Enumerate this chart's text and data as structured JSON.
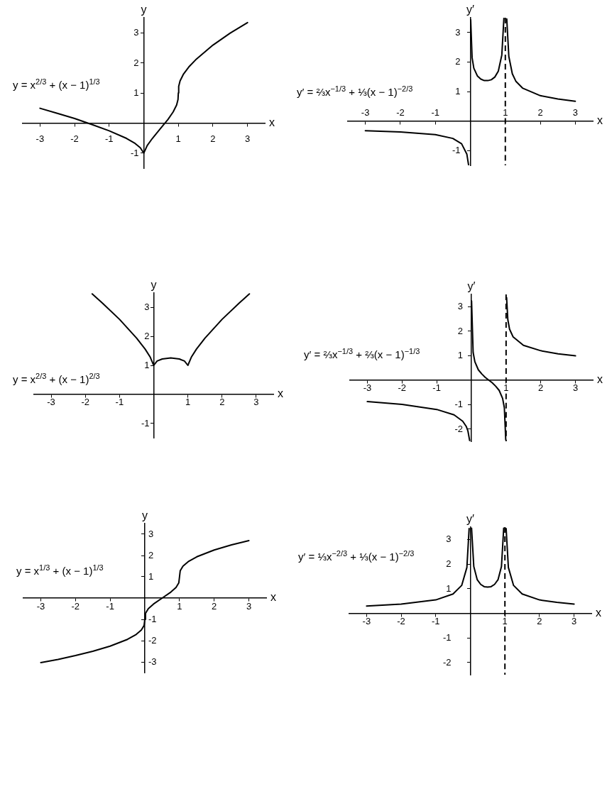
{
  "chart_data": [
    {
      "type": "line",
      "xlabel": "x",
      "ylabel": "y",
      "annotations": [
        "y = x$^{2/3}$ + (x − 1)$^{1/3}$"
      ],
      "x": [
        -3,
        -2.5,
        -2,
        -1.5,
        -1,
        -0.5,
        -0.25,
        -0.1,
        0,
        0.1,
        0.25,
        0.5,
        0.7,
        0.85,
        0.95,
        0.99,
        1,
        1.01,
        1.05,
        1.15,
        1.3,
        1.5,
        2,
        2.5,
        3
      ],
      "values": [
        0.49,
        0.32,
        0.15,
        -0.05,
        -0.26,
        -0.51,
        -0.68,
        -0.82,
        -1,
        -0.75,
        -0.51,
        -0.16,
        0.12,
        0.37,
        0.6,
        0.78,
        1,
        1.22,
        1.4,
        1.63,
        1.86,
        2.1,
        2.59,
        2.99,
        3.34
      ],
      "color": "#000000",
      "xlim": [
        -3.5,
        3.5
      ],
      "ylim": [
        -1.5,
        3.5
      ],
      "xticks": [
        -3,
        -2,
        -1,
        1,
        2,
        3
      ],
      "yticks": [
        -1,
        1,
        2,
        3
      ],
      "marker": "none"
    },
    {
      "type": "line",
      "xlabel": "x",
      "ylabel": "y′",
      "annotations": [
        "y′ = ⅔x$^{−1/3}$ + ⅓(x − 1)$^{−2/3}$"
      ],
      "x": [
        -3,
        -2,
        -1,
        -0.5,
        -0.25,
        -0.1,
        -0.05,
        0,
        0.01,
        0.05,
        0.1,
        0.2,
        0.3,
        0.4,
        0.5,
        0.6,
        0.7,
        0.8,
        0.9,
        0.959,
        1,
        1.041,
        1.1,
        1.2,
        1.3,
        1.5,
        2,
        2.5,
        3
      ],
      "values": [
        -0.33,
        -0.37,
        -0.46,
        -0.59,
        -0.77,
        -1.12,
        -1.49,
        null,
        3.43,
        2.15,
        1.79,
        1.53,
        1.42,
        1.37,
        1.37,
        1.4,
        1.49,
        1.69,
        2.24,
        3.48,
        null,
        3.46,
        2.19,
        1.6,
        1.35,
        1.11,
        0.86,
        0.75,
        0.67
      ],
      "color": "#000000",
      "xlim": [
        -3.5,
        3.5
      ],
      "ylim": [
        -1.5,
        3.5
      ],
      "xticks": [
        -3,
        -2,
        -1,
        1,
        2,
        3
      ],
      "yticks": [
        -1,
        1,
        2,
        3
      ],
      "marker": "none",
      "ref_lines": [
        {
          "axis": "x",
          "value": 1,
          "color": "#000000",
          "line_style": "dashed"
        }
      ]
    },
    {
      "type": "line",
      "xlabel": "x",
      "ylabel": "y",
      "annotations": [
        "y = x$^{2/3}$ + (x − 1)$^{2/3}$"
      ],
      "x": [
        -1.8,
        -1.5,
        -1,
        -0.5,
        -0.25,
        -0.1,
        0,
        0.1,
        0.25,
        0.5,
        0.75,
        0.9,
        1,
        1.1,
        1.25,
        1.5,
        2,
        2.5,
        2.8
      ],
      "values": [
        3.47,
        3.15,
        2.59,
        1.94,
        1.56,
        1.28,
        1,
        1.15,
        1.22,
        1.26,
        1.22,
        1.15,
        1,
        1.28,
        1.56,
        1.94,
        2.59,
        3.15,
        3.47
      ],
      "color": "#000000",
      "xlim": [
        -3.5,
        3.5
      ],
      "ylim": [
        -1.5,
        3.5
      ],
      "xticks": [
        -3,
        -2,
        -1,
        1,
        2,
        3
      ],
      "yticks": [
        -1,
        1,
        2,
        3
      ],
      "marker": "none"
    },
    {
      "type": "line",
      "xlabel": "x",
      "ylabel": "y′",
      "annotations": [
        "y′ = ⅔x$^{−1/3}$ + ⅔(x − 1)$^{−1/3}$"
      ],
      "x": [
        -3,
        -2,
        -1,
        -0.5,
        -0.25,
        -0.15,
        -0.1,
        -0.05,
        0,
        0.005,
        0.05,
        0.1,
        0.2,
        0.3,
        0.4,
        0.5,
        0.6,
        0.7,
        0.8,
        0.9,
        0.95,
        0.99,
        1,
        1.015,
        1.05,
        1.1,
        1.2,
        1.5,
        2,
        2.5,
        3
      ],
      "values": [
        -0.88,
        -0.99,
        -1.2,
        -1.42,
        -1.68,
        -1.89,
        -2.08,
        -2.47,
        null,
        3.23,
        1.13,
        0.75,
        0.42,
        0.25,
        0.11,
        0,
        -0.11,
        -0.25,
        -0.42,
        -0.75,
        -1.13,
        -2.43,
        null,
        3.37,
        2.47,
        2.08,
        1.77,
        1.42,
        1.2,
        1.07,
        0.99
      ],
      "color": "#000000",
      "xlim": [
        -3.5,
        3.5
      ],
      "ylim": [
        -2.5,
        3.5
      ],
      "xticks": [
        -3,
        -2,
        -1,
        1,
        2,
        3
      ],
      "yticks": [
        -2,
        -1,
        1,
        2,
        3
      ],
      "marker": "none",
      "ref_lines": [
        {
          "axis": "x",
          "value": 1,
          "color": "#000000",
          "line_style": "dashed"
        }
      ]
    },
    {
      "type": "line",
      "xlabel": "x",
      "ylabel": "y",
      "annotations": [
        "y = x$^{1/3}$ + (x − 1)$^{1/3}$"
      ],
      "x": [
        -3,
        -2.5,
        -2,
        -1.5,
        -1,
        -0.5,
        -0.25,
        -0.1,
        -0.02,
        0,
        0.02,
        0.1,
        0.25,
        0.5,
        0.75,
        0.9,
        0.98,
        1,
        1.02,
        1.1,
        1.25,
        1.5,
        2,
        2.5,
        3
      ],
      "values": [
        -3.03,
        -2.88,
        -2.7,
        -2.5,
        -2.26,
        -1.94,
        -1.71,
        -1.5,
        -1.28,
        -1,
        -0.72,
        -0.5,
        -0.28,
        0,
        0.28,
        0.5,
        0.72,
        1,
        1.28,
        1.5,
        1.71,
        1.94,
        2.26,
        2.5,
        2.7
      ],
      "color": "#000000",
      "xlim": [
        -3.5,
        3.5
      ],
      "ylim": [
        -3.5,
        3.5
      ],
      "xticks": [
        -3,
        -2,
        -1,
        1,
        2,
        3
      ],
      "yticks": [
        -3,
        -2,
        -1,
        1,
        2,
        3
      ],
      "marker": "none"
    },
    {
      "type": "line",
      "xlabel": "x",
      "ylabel": "y′",
      "annotations": [
        "y′ = ⅓x$^{−2/3}$ + ⅓(x − 1)$^{−2/3}$"
      ],
      "x": [
        -3,
        -2,
        -1,
        -0.5,
        -0.25,
        -0.1,
        -0.035,
        0,
        0.035,
        0.1,
        0.2,
        0.3,
        0.4,
        0.5,
        0.6,
        0.7,
        0.8,
        0.9,
        0.965,
        1,
        1.035,
        1.1,
        1.25,
        1.5,
        2,
        2.5,
        3
      ],
      "values": [
        0.29,
        0.37,
        0.54,
        0.78,
        1.13,
        1.86,
        3.44,
        null,
        3.46,
        1.9,
        1.36,
        1.17,
        1.08,
        1.06,
        1.08,
        1.17,
        1.36,
        1.9,
        3.46,
        null,
        3.44,
        1.86,
        1.13,
        0.78,
        0.54,
        0.44,
        0.37
      ],
      "color": "#000000",
      "xlim": [
        -3.5,
        3.5
      ],
      "ylim": [
        -2.5,
        3.5
      ],
      "xticks": [
        -3,
        -2,
        -1,
        1,
        2,
        3
      ],
      "yticks": [
        -2,
        -1,
        1,
        2,
        3
      ],
      "marker": "none",
      "ref_lines": [
        {
          "axis": "x",
          "value": 1,
          "color": "#000000",
          "line_style": "dashed"
        }
      ]
    }
  ]
}
